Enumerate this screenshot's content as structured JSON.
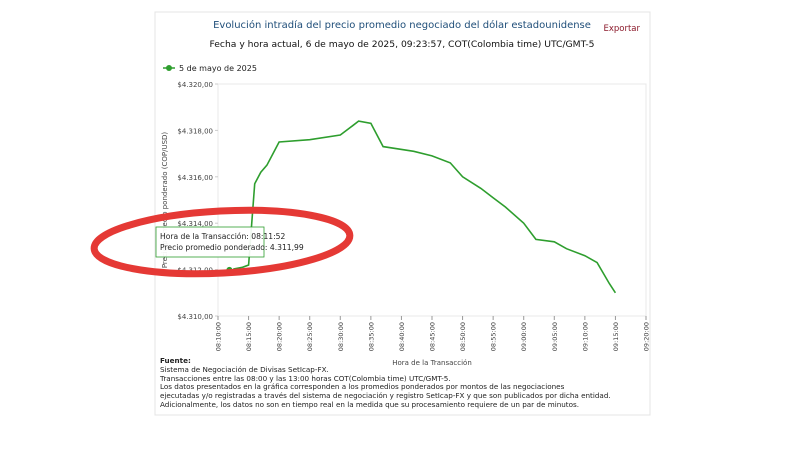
{
  "chart_data": {
    "type": "line",
    "title": "Evolución intradía del precio promedio negociado del dólar estadounidense",
    "subtitle": "Fecha y hora actual, 6 de mayo de 2025, 09:23:57, COT(Colombia time) UTC/GMT-5",
    "export": "Exportar",
    "x_label": "Hora de la Transacción",
    "y_label": "Precio promedio ponderado (COP/USD)",
    "x": [
      "08:11:52",
      "08:14:00",
      "08:15:00",
      "08:16:00",
      "08:17:00",
      "08:18:00",
      "08:19:00",
      "08:20:00",
      "08:25:00",
      "08:30:00",
      "08:32:00",
      "08:33:00",
      "08:35:00",
      "08:37:00",
      "08:42:00",
      "08:45:00",
      "08:48:00",
      "08:50:00",
      "08:53:00",
      "08:55:00",
      "08:57:00",
      "09:00:00",
      "09:02:00",
      "09:05:00",
      "09:07:00",
      "09:10:00",
      "09:12:00",
      "09:14:00",
      "09:15:00"
    ],
    "series": [
      {
        "name": "5 de mayo de 2025",
        "color": "#2e9e2e",
        "values": [
          4311.99,
          4312.1,
          4312.2,
          4315.7,
          4316.2,
          4316.5,
          4317.0,
          4317.5,
          4317.6,
          4317.8,
          4318.2,
          4318.4,
          4318.3,
          4317.3,
          4317.1,
          4316.9,
          4316.6,
          4316.0,
          4315.5,
          4315.1,
          4314.7,
          4314.0,
          4313.3,
          4313.2,
          4312.9,
          4312.6,
          4312.3,
          4311.4,
          4311.0
        ]
      }
    ],
    "xlim": [
      "08:10:00",
      "09:20:00"
    ],
    "xticks": [
      "08:10:00",
      "08:15:00",
      "08:20:00",
      "08:25:00",
      "08:30:00",
      "08:35:00",
      "08:40:00",
      "08:45:00",
      "08:50:00",
      "08:55:00",
      "09:00:00",
      "09:05:00",
      "09:10:00",
      "09:15:00",
      "09:20:00"
    ],
    "ylim": [
      4310,
      4320
    ],
    "yticks": [
      {
        "value": 4310,
        "label": "$4.310,00"
      },
      {
        "value": 4312,
        "label": "$4.312,00"
      },
      {
        "value": 4314,
        "label": "$4.314,00"
      },
      {
        "value": 4316,
        "label": "$4.316,00"
      },
      {
        "value": 4318,
        "label": "$4.318,00"
      },
      {
        "value": 4320,
        "label": "$4.320,00"
      }
    ],
    "grid": false,
    "legend": "top-left",
    "tooltip": [
      "Hora de la Transacción: 08:11:52",
      "Precio promedio ponderado: 4.311,99"
    ],
    "notes": {
      "heading": "Fuente:",
      "lines": [
        "Sistema de Negociación de Divisas SetIcap-FX.",
        "Transacciones entre las 08:00 y las 13:00 horas COT(Colombia time) UTC/GMT-5.",
        "Los datos presentados en la gráfica corresponden a los promedios ponderados por montos de las negociaciones",
        "ejecutadas y/o registradas a través del sistema de negociación y registro SetIcap-FX y que son publicados por dicha entidad.",
        "Adicionalmente, los datos no son en tiempo real en la medida que su procesamiento requiere de un par de minutos."
      ]
    }
  }
}
